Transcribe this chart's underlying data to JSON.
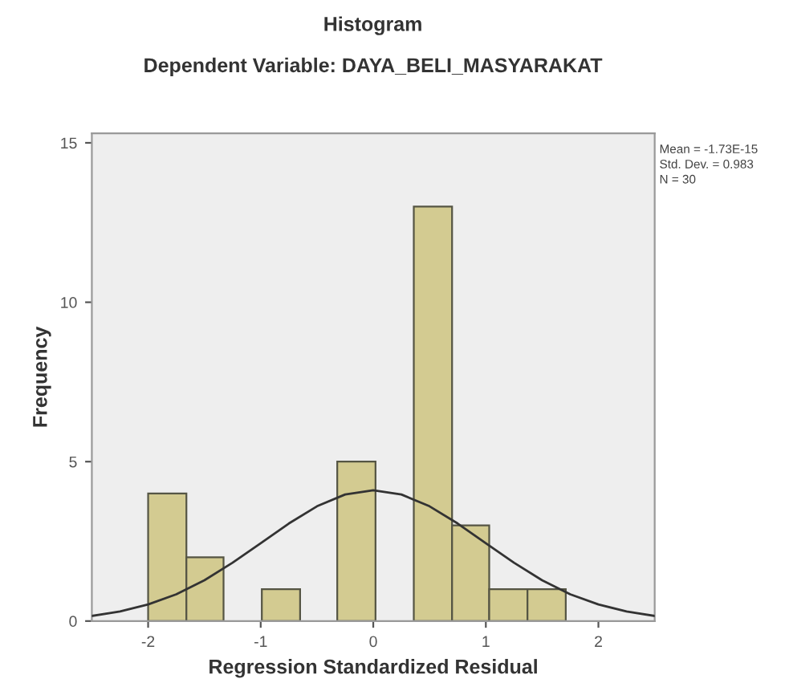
{
  "chart_data": {
    "type": "histogram",
    "title": "Histogram",
    "subtitle": "Dependent Variable: DAYA_BELI_MASYARAKAT",
    "xlabel": "Regression Standardized Residual",
    "ylabel": "Frequency",
    "bins": [
      -2.0,
      -1.66,
      -1.33,
      -0.99,
      -0.65,
      -0.32,
      0.02,
      0.36,
      0.7,
      1.03,
      1.37,
      1.71
    ],
    "series": [
      {
        "color": "#d3cb91",
        "values": [
          4,
          2,
          0,
          1,
          0,
          5,
          0,
          13,
          3,
          1,
          1
        ]
      },
      {
        "type": "line",
        "color": "#333333",
        "x": [
          -2.5,
          -2.25,
          -2.0,
          -1.75,
          -1.5,
          -1.25,
          -1.0,
          -0.75,
          -0.5,
          -0.25,
          0,
          0.25,
          0.5,
          0.75,
          1.0,
          1.25,
          1.5,
          1.75,
          2.0,
          2.25,
          2.5
        ],
        "values": [
          0.16,
          0.3,
          0.52,
          0.84,
          1.28,
          1.83,
          2.44,
          3.06,
          3.6,
          3.97,
          4.1,
          3.97,
          3.6,
          3.06,
          2.44,
          1.83,
          1.28,
          0.84,
          0.52,
          0.3,
          0.16
        ]
      }
    ],
    "xlim": [
      -2.5,
      2.5
    ],
    "ylim": [
      0,
      15.3
    ],
    "xticks": [
      -2,
      -1,
      0,
      1,
      2
    ],
    "yticks": [
      0,
      5,
      10,
      15
    ],
    "annotations": [
      "Mean = -1.73E-15",
      "Std. Dev. = 0.983",
      "N = 30"
    ],
    "grid": false,
    "legend": false
  }
}
